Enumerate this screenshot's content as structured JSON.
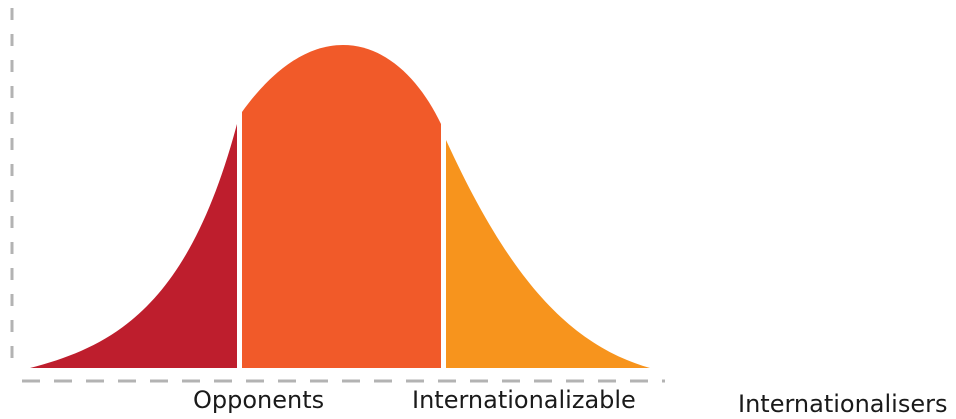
{
  "segments": [
    {
      "label": "Opponents",
      "color": "#be1e2d"
    },
    {
      "label": "Internationalizable",
      "color": "#f15a29"
    },
    {
      "label": "Internationalisers",
      "color": "#f7941d"
    }
  ],
  "axis_color": "#b3b3b3"
}
